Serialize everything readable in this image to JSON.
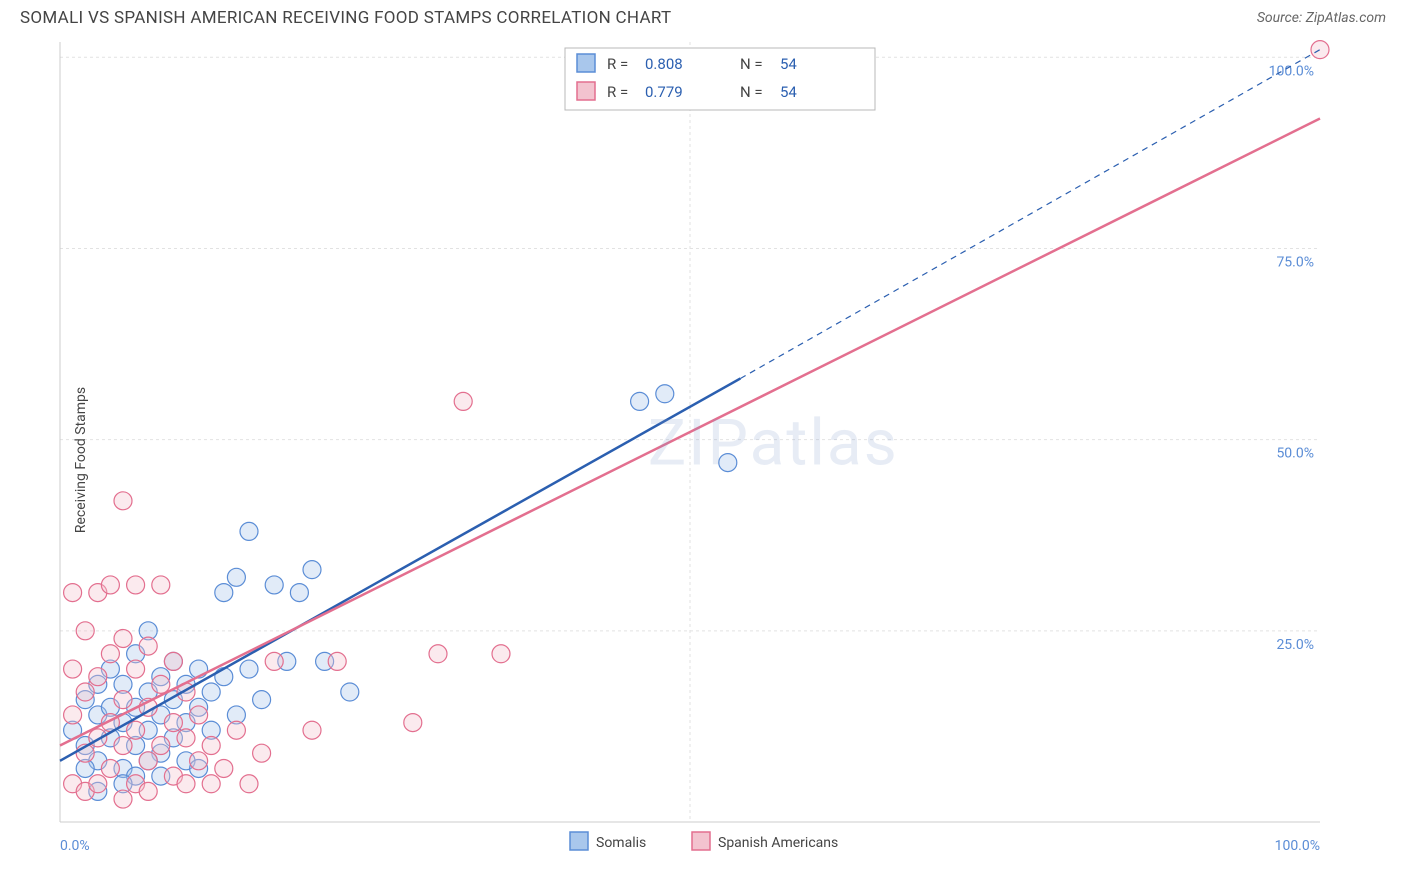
{
  "title": "SOMALI VS SPANISH AMERICAN RECEIVING FOOD STAMPS CORRELATION CHART",
  "source_label": "Source: ZipAtlas.com",
  "watermark": "ZIPatlas",
  "chart": {
    "type": "scatter",
    "background_color": "#ffffff",
    "plot_border_color": "#cccccc",
    "grid_color": "#e2e2e2",
    "grid_dash": "3,3",
    "xlim": [
      0,
      100
    ],
    "ylim": [
      0,
      102
    ],
    "x_ticks": [
      0,
      50,
      100
    ],
    "x_tick_labels": [
      "0.0%",
      "",
      "100.0%"
    ],
    "y_ticks": [
      25,
      50,
      75,
      100
    ],
    "y_tick_labels": [
      "25.0%",
      "50.0%",
      "75.0%",
      "100.0%"
    ],
    "ylabel": "Receiving Food Stamps",
    "tick_label_color": "#5b8dd6",
    "tick_label_fontsize": 14,
    "marker_radius": 9,
    "marker_stroke_width": 1.2,
    "marker_fill_opacity": 0.35,
    "series": [
      {
        "name": "Somalis",
        "color_fill": "#a9c7ec",
        "color_stroke": "#5b8dd6",
        "points": [
          [
            1,
            12
          ],
          [
            2,
            10
          ],
          [
            2,
            16
          ],
          [
            3,
            8
          ],
          [
            3,
            14
          ],
          [
            3,
            18
          ],
          [
            4,
            11
          ],
          [
            4,
            15
          ],
          [
            4,
            20
          ],
          [
            5,
            7
          ],
          [
            5,
            13
          ],
          [
            5,
            18
          ],
          [
            6,
            10
          ],
          [
            6,
            15
          ],
          [
            6,
            22
          ],
          [
            7,
            12
          ],
          [
            7,
            17
          ],
          [
            7,
            25
          ],
          [
            8,
            9
          ],
          [
            8,
            14
          ],
          [
            8,
            19
          ],
          [
            9,
            11
          ],
          [
            9,
            16
          ],
          [
            9,
            21
          ],
          [
            10,
            8
          ],
          [
            10,
            13
          ],
          [
            10,
            18
          ],
          [
            11,
            15
          ],
          [
            11,
            20
          ],
          [
            12,
            12
          ],
          [
            12,
            17
          ],
          [
            13,
            19
          ],
          [
            13,
            30
          ],
          [
            14,
            14
          ],
          [
            14,
            32
          ],
          [
            15,
            20
          ],
          [
            16,
            16
          ],
          [
            17,
            31
          ],
          [
            18,
            21
          ],
          [
            19,
            30
          ],
          [
            20,
            33
          ],
          [
            21,
            21
          ],
          [
            23,
            17
          ],
          [
            15,
            38
          ],
          [
            8,
            6
          ],
          [
            6,
            6
          ],
          [
            11,
            7
          ],
          [
            3,
            4
          ],
          [
            5,
            5
          ],
          [
            48,
            56
          ],
          [
            53,
            47
          ],
          [
            46,
            55
          ],
          [
            2,
            7
          ],
          [
            7,
            8
          ]
        ],
        "trend_line": {
          "x1": 0,
          "y1": 8,
          "x2": 54,
          "y2": 58,
          "color": "#2b5fb0",
          "width": 2.5,
          "dash": null
        },
        "trend_line_ext": {
          "x1": 54,
          "y1": 58,
          "x2": 100,
          "y2": 101,
          "color": "#2b5fb0",
          "width": 1.2,
          "dash": "6,5"
        }
      },
      {
        "name": "Spanish Americans",
        "color_fill": "#f3c3cf",
        "color_stroke": "#e36f8f",
        "points": [
          [
            1,
            14
          ],
          [
            1,
            20
          ],
          [
            2,
            9
          ],
          [
            2,
            17
          ],
          [
            2,
            25
          ],
          [
            3,
            11
          ],
          [
            3,
            19
          ],
          [
            3,
            30
          ],
          [
            4,
            7
          ],
          [
            4,
            13
          ],
          [
            4,
            22
          ],
          [
            4,
            31
          ],
          [
            5,
            10
          ],
          [
            5,
            16
          ],
          [
            5,
            24
          ],
          [
            5,
            42
          ],
          [
            6,
            5
          ],
          [
            6,
            12
          ],
          [
            6,
            20
          ],
          [
            6,
            31
          ],
          [
            7,
            8
          ],
          [
            7,
            15
          ],
          [
            7,
            23
          ],
          [
            8,
            10
          ],
          [
            8,
            18
          ],
          [
            8,
            31
          ],
          [
            9,
            6
          ],
          [
            9,
            13
          ],
          [
            9,
            21
          ],
          [
            10,
            5
          ],
          [
            10,
            11
          ],
          [
            10,
            17
          ],
          [
            11,
            8
          ],
          [
            11,
            14
          ],
          [
            12,
            10
          ],
          [
            13,
            7
          ],
          [
            14,
            12
          ],
          [
            15,
            5
          ],
          [
            16,
            9
          ],
          [
            17,
            21
          ],
          [
            20,
            12
          ],
          [
            22,
            21
          ],
          [
            28,
            13
          ],
          [
            30,
            22
          ],
          [
            32,
            55
          ],
          [
            35,
            22
          ],
          [
            100,
            101
          ],
          [
            1,
            5
          ],
          [
            2,
            4
          ],
          [
            3,
            5
          ],
          [
            5,
            3
          ],
          [
            7,
            4
          ],
          [
            12,
            5
          ],
          [
            1,
            30
          ]
        ],
        "trend_line": {
          "x1": 0,
          "y1": 10,
          "x2": 100,
          "y2": 92,
          "color": "#e36f8f",
          "width": 2.5,
          "dash": null
        }
      }
    ],
    "stats_box": {
      "border_color": "#b8b8b8",
      "bg_color": "#ffffff",
      "label_color": "#444444",
      "value_color": "#2b5fb0",
      "rows": [
        {
          "swatch_fill": "#a9c7ec",
          "swatch_stroke": "#5b8dd6",
          "R": "0.808",
          "N": "54"
        },
        {
          "swatch_fill": "#f3c3cf",
          "swatch_stroke": "#e36f8f",
          "R": "0.779",
          "N": "54"
        }
      ]
    },
    "bottom_legend": [
      {
        "swatch_fill": "#a9c7ec",
        "swatch_stroke": "#5b8dd6",
        "label": "Somalis"
      },
      {
        "swatch_fill": "#f3c3cf",
        "swatch_stroke": "#e36f8f",
        "label": "Spanish Americans"
      }
    ]
  }
}
